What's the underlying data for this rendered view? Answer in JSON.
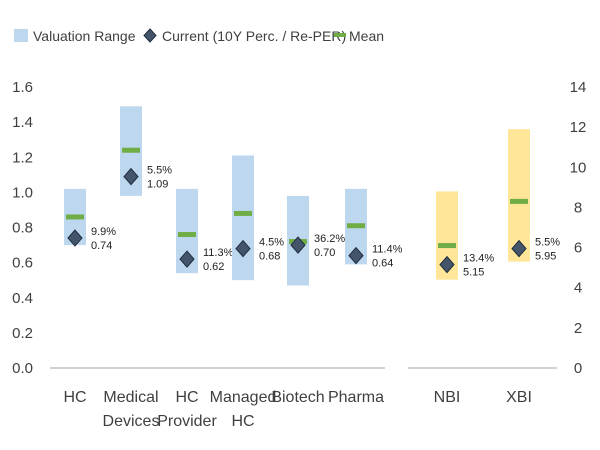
{
  "chart_data": {
    "type": "range",
    "legend": {
      "range_label": "Valuation Range",
      "current_label": "Current (10Y Perc. / Re-PER)",
      "mean_label": "Mean"
    },
    "colors": {
      "range_left": "#BDD7EE",
      "range_right": "#FFE699",
      "mean": "#70AD47",
      "marker_fill": "#44546A",
      "marker_stroke": "#1F2D3D",
      "axis": "#A6A6A6",
      "text": "#404040"
    },
    "y_left": {
      "min": 0,
      "max": 1.6,
      "ticks": [
        "0.0",
        "0.2",
        "0.4",
        "0.6",
        "0.8",
        "1.0",
        "1.2",
        "1.4",
        "1.6"
      ]
    },
    "y_right": {
      "min": 0,
      "max": 14,
      "ticks": [
        "0",
        "2",
        "4",
        "6",
        "8",
        "10",
        "12",
        "14"
      ]
    },
    "left_series": [
      {
        "name_lines": [
          "HC"
        ],
        "low": 0.7,
        "high": 1.02,
        "mean": 0.86,
        "current": 0.74,
        "pct_label": "9.9%",
        "value_label": "0.74"
      },
      {
        "name_lines": [
          "Medical",
          "Devices"
        ],
        "low": 0.98,
        "high": 1.49,
        "mean": 1.24,
        "current": 1.09,
        "pct_label": "5.5%",
        "value_label": "1.09"
      },
      {
        "name_lines": [
          "HC",
          "Provider"
        ],
        "low": 0.54,
        "high": 1.02,
        "mean": 0.76,
        "current": 0.62,
        "pct_label": "11.3%",
        "value_label": "0.62"
      },
      {
        "name_lines": [
          "Managed",
          "HC"
        ],
        "low": 0.5,
        "high": 1.21,
        "mean": 0.88,
        "current": 0.68,
        "pct_label": "4.5%",
        "value_label": "0.68"
      },
      {
        "name_lines": [
          "Biotech"
        ],
        "low": 0.47,
        "high": 0.98,
        "mean": 0.72,
        "current": 0.7,
        "pct_label": "36.2%",
        "value_label": "0.70"
      },
      {
        "name_lines": [
          "Pharma"
        ],
        "low": 0.59,
        "high": 1.02,
        "mean": 0.81,
        "current": 0.64,
        "pct_label": "11.4%",
        "value_label": "0.64"
      }
    ],
    "right_series": [
      {
        "name_lines": [
          "NBI"
        ],
        "low": 4.4,
        "high": 8.8,
        "mean": 6.1,
        "current": 5.15,
        "pct_label": "13.4%",
        "value_label": "5.15"
      },
      {
        "name_lines": [
          "XBI"
        ],
        "low": 5.3,
        "high": 11.9,
        "mean": 8.3,
        "current": 5.95,
        "pct_label": "5.5%",
        "value_label": "5.95"
      }
    ]
  }
}
